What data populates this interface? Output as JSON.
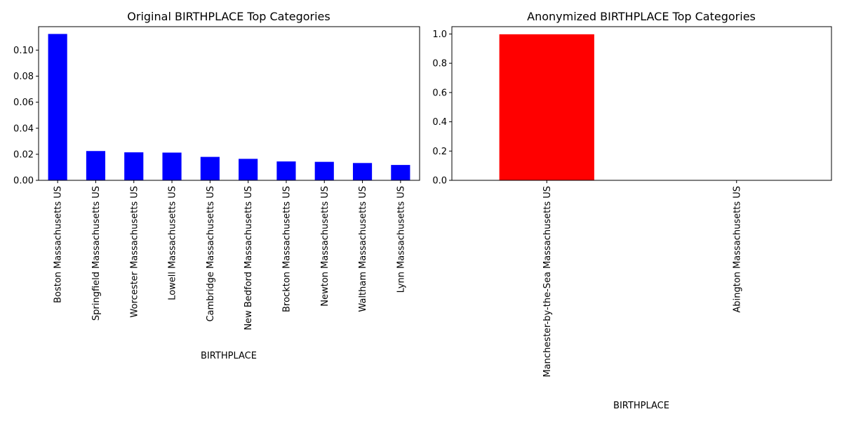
{
  "chart_data": [
    {
      "type": "bar",
      "title": "Original BIRTHPLACE Top Categories",
      "xlabel": "BIRTHPLACE",
      "ylabel": "",
      "color": "#0000ff",
      "categories": [
        "Boston  Massachusetts  US",
        "Springfield  Massachusetts  US",
        "Worcester  Massachusetts  US",
        "Lowell  Massachusetts  US",
        "Cambridge  Massachusetts  US",
        "New Bedford  Massachusetts  US",
        "Brockton  Massachusetts  US",
        "Newton  Massachusetts  US",
        "Waltham  Massachusetts  US",
        "Lynn  Massachusetts  US"
      ],
      "values": [
        0.1124,
        0.0225,
        0.0215,
        0.0213,
        0.018,
        0.0165,
        0.0145,
        0.0142,
        0.0133,
        0.0118
      ],
      "ylim": [
        0,
        0.118
      ],
      "yticks": [
        0.0,
        0.02,
        0.04,
        0.06,
        0.08,
        0.1
      ],
      "ytick_labels": [
        "0.00",
        "0.02",
        "0.04",
        "0.06",
        "0.08",
        "0.10"
      ],
      "grid": false,
      "legend": "none"
    },
    {
      "type": "bar",
      "title": "Anonymized BIRTHPLACE Top Categories",
      "xlabel": "BIRTHPLACE",
      "ylabel": "",
      "color": "#ff0000",
      "categories": [
        "Manchester-by-the-Sea  Massachusetts  US",
        "Abington  Massachusetts  US"
      ],
      "values": [
        0.998,
        0.002
      ],
      "ylim": [
        0,
        1.05
      ],
      "yticks": [
        0.0,
        0.2,
        0.4,
        0.6,
        0.8,
        1.0
      ],
      "ytick_labels": [
        "0.0",
        "0.2",
        "0.4",
        "0.6",
        "0.8",
        "1.0"
      ],
      "grid": false,
      "legend": "none"
    }
  ]
}
